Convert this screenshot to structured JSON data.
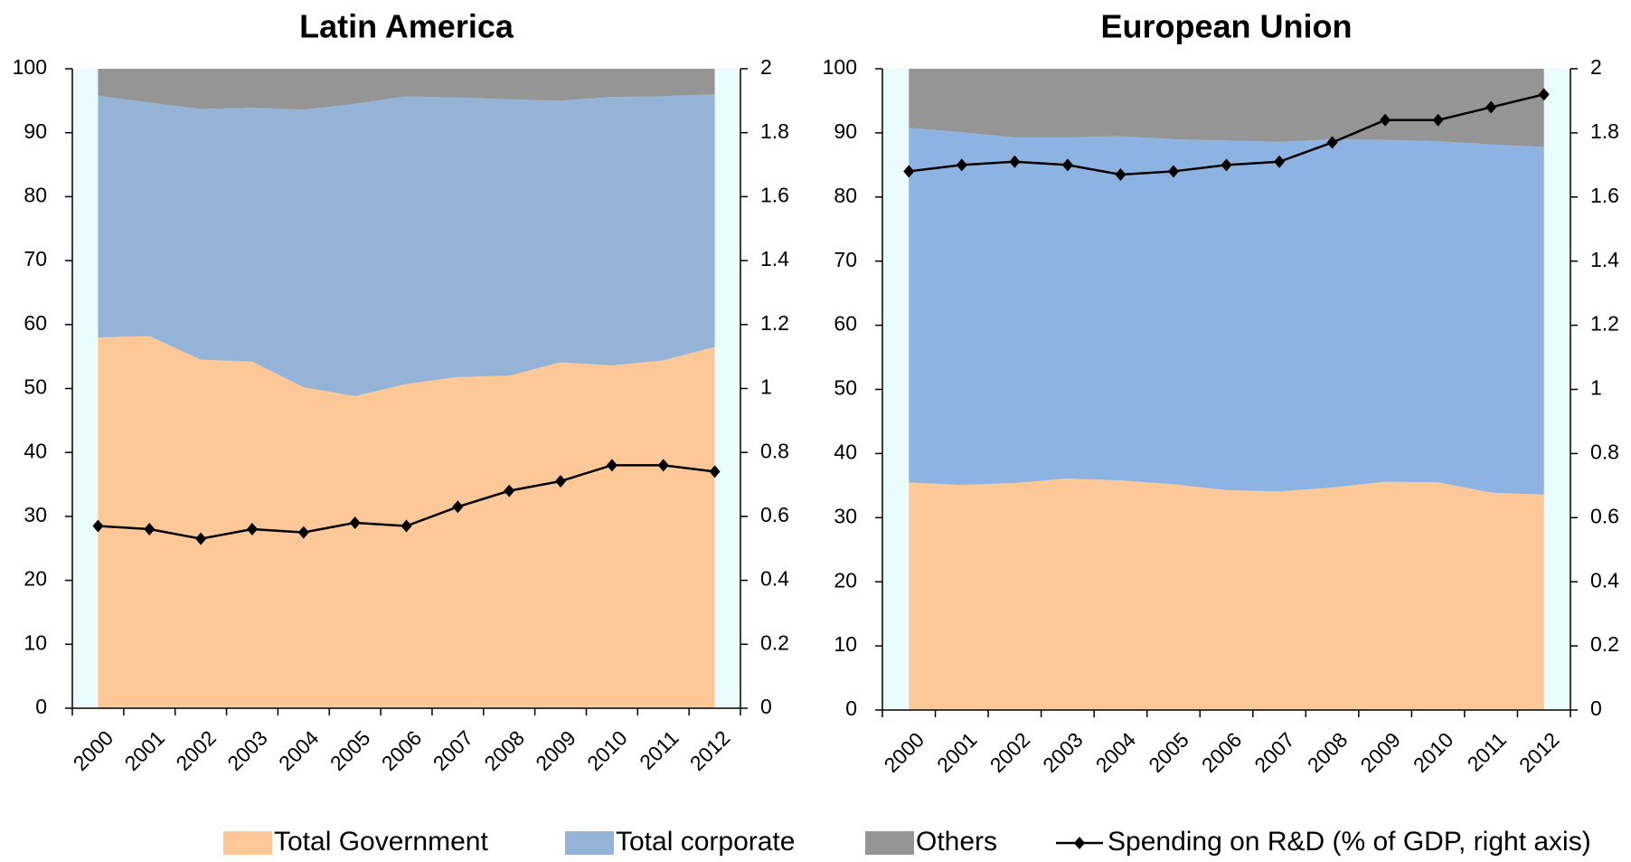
{
  "chart_data": [
    {
      "type": "stacked-area-line",
      "title": "Latin America",
      "categories": [
        "2000",
        "2001",
        "2002",
        "2003",
        "2004",
        "2005",
        "2006",
        "2007",
        "2008",
        "2009",
        "2010",
        "2011",
        "2012"
      ],
      "series": [
        {
          "name": "Total Government",
          "color": "#fdc897",
          "values": [
            58,
            58.2,
            54.5,
            54.2,
            50.2,
            48.8,
            50.7,
            51.8,
            52,
            54.1,
            53.6,
            54.4,
            56.5
          ]
        },
        {
          "name": "Total corporate",
          "color": "#95b3d7",
          "values": [
            37.8,
            36.5,
            39.2,
            39.7,
            43.4,
            45.7,
            45,
            43.7,
            43.2,
            40.9,
            42,
            41.3,
            39.5
          ]
        },
        {
          "name": "Others",
          "color": "#959595",
          "values": [
            4.2,
            5.3,
            6.3,
            6.1,
            6.4,
            5.5,
            4.3,
            4.5,
            4.8,
            5,
            4.4,
            4.3,
            4
          ]
        },
        {
          "name": "Spending on R&D (% of GDP, right axis)",
          "color": "#000000",
          "axis": "y2",
          "values": [
            0.57,
            0.56,
            0.53,
            0.56,
            0.55,
            0.58,
            0.57,
            0.63,
            0.68,
            0.71,
            0.76,
            0.76,
            0.74
          ]
        }
      ],
      "ylim": [
        0,
        100
      ],
      "yticks": [
        0,
        10,
        20,
        30,
        40,
        50,
        60,
        70,
        80,
        90,
        100
      ],
      "y2lim": [
        0,
        2
      ],
      "y2ticks": [
        0,
        0.2,
        0.4,
        0.6,
        0.8,
        1,
        1.2,
        1.4,
        1.6,
        1.8,
        2
      ]
    },
    {
      "type": "stacked-area-line",
      "title": "European Union",
      "categories": [
        "2000",
        "2001",
        "2002",
        "2003",
        "2004",
        "2005",
        "2006",
        "2007",
        "2008",
        "2009",
        "2010",
        "2011",
        "2012"
      ],
      "series": [
        {
          "color": "#fdc897",
          "values": [
            35.5,
            35.1,
            35.4,
            36.1,
            35.8,
            35.2,
            34.3,
            34.1,
            34.7,
            35.6,
            35.5,
            33.9,
            33.6
          ]
        },
        {
          "color": "#8db3e2",
          "values": [
            55.3,
            55,
            53.9,
            53.2,
            53.7,
            53.8,
            54.5,
            54.5,
            54.3,
            53.3,
            53.2,
            54.3,
            54.2
          ]
        },
        {
          "color": "#959595",
          "values": [
            9.2,
            9.9,
            10.7,
            10.7,
            10.5,
            11,
            11.2,
            11.4,
            11,
            11.1,
            11.3,
            11.8,
            12.2
          ]
        },
        {
          "color": "#000000",
          "axis": "y2",
          "values": [
            1.68,
            1.7,
            1.71,
            1.7,
            1.67,
            1.68,
            1.7,
            1.71,
            1.77,
            1.84,
            1.84,
            1.88,
            1.92
          ]
        }
      ],
      "ylim": [
        0,
        100
      ],
      "yticks": [
        0,
        10,
        20,
        30,
        40,
        50,
        60,
        70,
        80,
        90,
        100
      ],
      "y2lim": [
        0,
        2
      ],
      "y2ticks": [
        0,
        0.2,
        0.4,
        0.6,
        0.8,
        1,
        1.2,
        1.4,
        1.6,
        1.8,
        2
      ]
    }
  ]
}
